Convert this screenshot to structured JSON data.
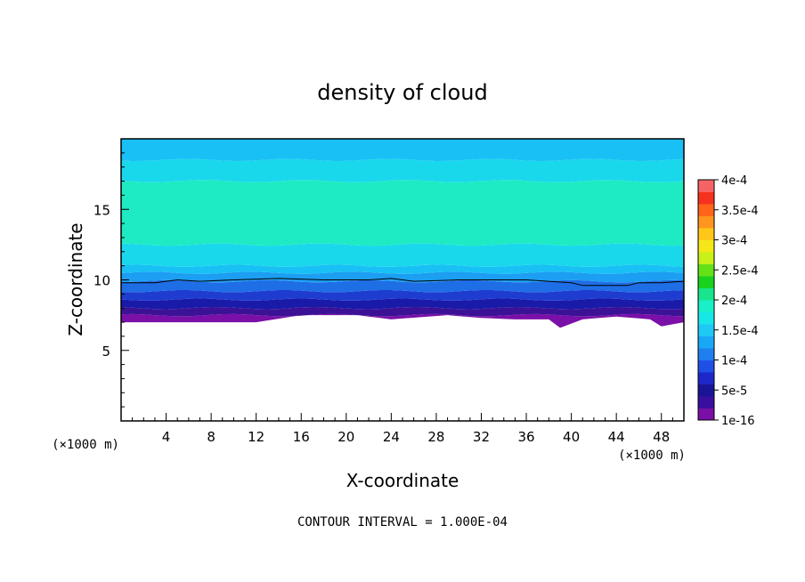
{
  "chart_data": {
    "type": "heatmap",
    "title": "density of cloud",
    "xlabel": "X-coordinate",
    "ylabel": "Z-coordinate",
    "x_unit": "(×1000 m)",
    "z_unit": "(×1000 m)",
    "xlim": [
      0,
      50
    ],
    "ylim": [
      0,
      20
    ],
    "x_ticks": [
      4,
      8,
      12,
      16,
      20,
      24,
      28,
      32,
      36,
      40,
      44,
      48
    ],
    "y_ticks": [
      5,
      10,
      15
    ],
    "footnote": "CONTOUR INTERVAL = 1.000E-04",
    "colorbar": {
      "tick_labels": [
        "1e-16",
        "5e-5",
        "1e-4",
        "1.5e-4",
        "2e-4",
        "2.5e-4",
        "3e-4",
        "3.5e-4",
        "4e-4"
      ],
      "colors": [
        "#7a0fa6",
        "#3a0fa0",
        "#1a1496",
        "#1e28c8",
        "#1e50e6",
        "#1f7ff0",
        "#19a8f5",
        "#1fc8f5",
        "#19e6e6",
        "#19f0c8",
        "#19e68c",
        "#19d21e",
        "#64e119",
        "#c8f019",
        "#f5e619",
        "#ffc819",
        "#ff961e",
        "#ff6419",
        "#f5321e",
        "#f56464"
      ]
    },
    "cloud_base_km": [
      [
        0,
        7.0
      ],
      [
        12,
        7.0
      ],
      [
        16,
        7.5
      ],
      [
        21,
        7.5
      ],
      [
        24,
        7.2
      ],
      [
        29,
        7.5
      ],
      [
        32,
        7.3
      ],
      [
        35,
        7.2
      ],
      [
        38,
        7.2
      ],
      [
        39,
        6.6
      ],
      [
        41,
        7.2
      ],
      [
        44,
        7.4
      ],
      [
        47,
        7.2
      ],
      [
        48,
        6.7
      ],
      [
        50,
        7.0
      ]
    ],
    "contour_1e-4_km": [
      [
        0,
        9.8
      ],
      [
        3,
        9.8
      ],
      [
        5,
        10.0
      ],
      [
        7,
        9.9
      ],
      [
        10,
        10.0
      ],
      [
        14,
        10.1
      ],
      [
        18,
        10.0
      ],
      [
        22,
        10.0
      ],
      [
        24,
        10.1
      ],
      [
        26,
        9.9
      ],
      [
        30,
        10.0
      ],
      [
        33,
        10.0
      ],
      [
        36,
        10.0
      ],
      [
        38,
        9.9
      ],
      [
        40,
        9.8
      ],
      [
        41,
        9.6
      ],
      [
        43,
        9.6
      ],
      [
        45,
        9.6
      ],
      [
        46,
        9.8
      ],
      [
        48,
        9.8
      ],
      [
        50,
        9.9
      ]
    ],
    "bands_km": [
      {
        "bottom": 7.0,
        "top": 7.5,
        "level": "1e-16"
      },
      {
        "bottom": 7.5,
        "top": 8.0,
        "level": "2.5e-5"
      },
      {
        "bottom": 8.0,
        "top": 8.6,
        "level": "5e-5"
      },
      {
        "bottom": 8.6,
        "top": 9.2,
        "level": "7.5e-5"
      },
      {
        "bottom": 9.2,
        "top": 9.9,
        "level": "8.5e-5"
      },
      {
        "bottom": 9.9,
        "top": 10.5,
        "level": "1e-4"
      },
      {
        "bottom": 10.5,
        "top": 11.0,
        "level": "1.1e-4"
      },
      {
        "bottom": 11.0,
        "top": 12.5,
        "level": "1.25e-4"
      },
      {
        "bottom": 12.5,
        "top": 17.0,
        "level": "1.5e-4"
      },
      {
        "bottom": 17.0,
        "top": 18.5,
        "level": "1.25e-4"
      },
      {
        "bottom": 18.5,
        "top": 20.0,
        "level": "1.1e-4"
      }
    ]
  }
}
